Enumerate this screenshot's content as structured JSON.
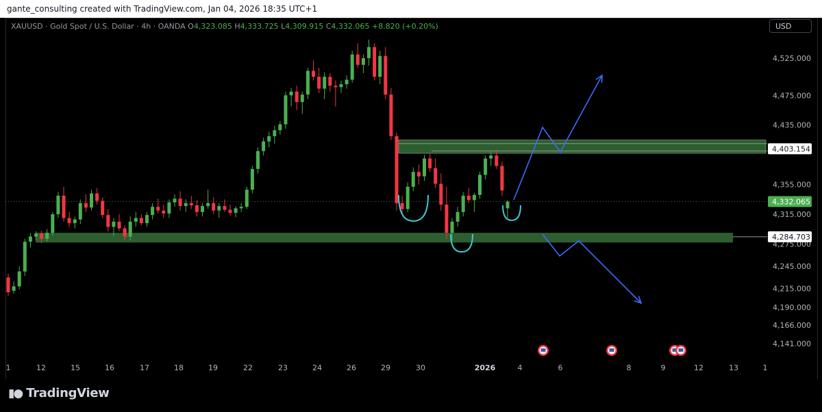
{
  "attribution": "gante_consulting created with TradingView.com, Jan 04, 2026 18:35 UTC+1",
  "legend": {
    "symbol": "XAUUSD · Gold Spot / U.S. Dollar · 4h · OANDA",
    "o_label": "O",
    "o_value": "4,323.085",
    "h_label": "H",
    "h_value": "4,333.725",
    "l_label": "L",
    "l_value": "4,309.915",
    "c_label": "C",
    "c_value": "4,332.065",
    "change": "+8.820 (+0.20%)"
  },
  "currency_button": "USD",
  "brand": "TradingView",
  "colors": {
    "up": "#4caf50",
    "down": "#f23645",
    "zone": "#2e5e30",
    "arrow": "#3d6bff",
    "cup": "#3fc8d8",
    "price_tag": "#4caf50"
  },
  "chart_data": {
    "type": "candlestick",
    "instrument": "XAUUSD",
    "timeframe": "4h",
    "y_ticks": [
      "4,525.000",
      "4,475.000",
      "4,435.000",
      "4,355.000",
      "4,315.000",
      "4,275.000",
      "4,245.000",
      "4,215.000",
      "4,190.000",
      "4,166.000",
      "4,141.000"
    ],
    "y_tick_values": [
      4525,
      4475,
      4435,
      4355,
      4315,
      4275,
      4245,
      4215,
      4190,
      4166,
      4141
    ],
    "x_ticks": [
      "1",
      "12",
      "15",
      "16",
      "17",
      "18",
      "19",
      "22",
      "23",
      "24",
      "26",
      "29",
      "30",
      "2026",
      "4",
      "6",
      "8",
      "9",
      "12",
      "13",
      "1"
    ],
    "price_labels": [
      {
        "text": "4,403.154",
        "value": 4403.154,
        "style": "white"
      },
      {
        "text": "4,332.065",
        "value": 4332.065,
        "style": "green"
      },
      {
        "text": "4,284.703",
        "value": 4284.703,
        "style": "white"
      }
    ],
    "resistance_zone": [
      4397,
      4415
    ],
    "support_zone": [
      4277,
      4290
    ],
    "candles": [
      [
        4230,
        4235,
        4205,
        4210
      ],
      [
        4212,
        4225,
        4208,
        4218
      ],
      [
        4218,
        4245,
        4214,
        4238
      ],
      [
        4238,
        4282,
        4232,
        4278
      ],
      [
        4278,
        4290,
        4270,
        4285
      ],
      [
        4285,
        4292,
        4280,
        4289
      ],
      [
        4289,
        4293,
        4276,
        4282
      ],
      [
        4282,
        4295,
        4278,
        4290
      ],
      [
        4290,
        4318,
        4286,
        4315
      ],
      [
        4315,
        4345,
        4310,
        4340
      ],
      [
        4340,
        4352,
        4305,
        4310
      ],
      [
        4310,
        4318,
        4298,
        4303
      ],
      [
        4303,
        4312,
        4296,
        4308
      ],
      [
        4308,
        4335,
        4302,
        4330
      ],
      [
        4330,
        4342,
        4318,
        4324
      ],
      [
        4324,
        4348,
        4320,
        4343
      ],
      [
        4343,
        4350,
        4328,
        4333
      ],
      [
        4333,
        4338,
        4310,
        4314
      ],
      [
        4314,
        4322,
        4292,
        4298
      ],
      [
        4298,
        4310,
        4286,
        4305
      ],
      [
        4305,
        4315,
        4292,
        4296
      ],
      [
        4296,
        4300,
        4280,
        4285
      ],
      [
        4285,
        4312,
        4280,
        4305
      ],
      [
        4305,
        4318,
        4298,
        4310
      ],
      [
        4310,
        4315,
        4300,
        4303
      ],
      [
        4303,
        4318,
        4298,
        4314
      ],
      [
        4314,
        4330,
        4308,
        4325
      ],
      [
        4325,
        4336,
        4316,
        4320
      ],
      [
        4320,
        4328,
        4310,
        4316
      ],
      [
        4316,
        4335,
        4310,
        4331
      ],
      [
        4331,
        4342,
        4325,
        4336
      ],
      [
        4336,
        4346,
        4320,
        4326
      ],
      [
        4326,
        4335,
        4318,
        4330
      ],
      [
        4330,
        4340,
        4322,
        4327
      ],
      [
        4327,
        4334,
        4312,
        4318
      ],
      [
        4318,
        4330,
        4312,
        4326
      ],
      [
        4326,
        4348,
        4322,
        4330
      ],
      [
        4330,
        4338,
        4315,
        4320
      ],
      [
        4320,
        4330,
        4310,
        4326
      ],
      [
        4326,
        4335,
        4318,
        4321
      ],
      [
        4321,
        4328,
        4313,
        4317
      ],
      [
        4317,
        4326,
        4311,
        4323
      ],
      [
        4323,
        4330,
        4318,
        4325
      ],
      [
        4325,
        4352,
        4322,
        4348
      ],
      [
        4348,
        4380,
        4343,
        4376
      ],
      [
        4376,
        4405,
        4370,
        4400
      ],
      [
        4400,
        4418,
        4394,
        4413
      ],
      [
        4413,
        4426,
        4405,
        4420
      ],
      [
        4420,
        4434,
        4410,
        4428
      ],
      [
        4428,
        4440,
        4422,
        4436
      ],
      [
        4436,
        4480,
        4430,
        4475
      ],
      [
        4475,
        4485,
        4460,
        4480
      ],
      [
        4480,
        4488,
        4455,
        4466
      ],
      [
        4466,
        4480,
        4450,
        4476
      ],
      [
        4476,
        4512,
        4470,
        4508
      ],
      [
        4508,
        4522,
        4495,
        4500
      ],
      [
        4500,
        4512,
        4478,
        4484
      ],
      [
        4484,
        4506,
        4470,
        4500
      ],
      [
        4500,
        4505,
        4480,
        4488
      ],
      [
        4488,
        4495,
        4460,
        4486
      ],
      [
        4486,
        4495,
        4478,
        4490
      ],
      [
        4490,
        4502,
        4484,
        4496
      ],
      [
        4496,
        4535,
        4492,
        4530
      ],
      [
        4530,
        4545,
        4512,
        4516
      ],
      [
        4516,
        4530,
        4505,
        4525
      ],
      [
        4525,
        4550,
        4515,
        4540
      ],
      [
        4540,
        4545,
        4495,
        4500
      ],
      [
        4500,
        4535,
        4490,
        4528
      ],
      [
        4528,
        4540,
        4470,
        4476
      ],
      [
        4476,
        4485,
        4415,
        4420
      ],
      [
        4420,
        4425,
        4320,
        4330
      ],
      [
        4330,
        4340,
        4315,
        4322
      ],
      [
        4322,
        4358,
        4318,
        4352
      ],
      [
        4352,
        4378,
        4346,
        4372
      ],
      [
        4372,
        4382,
        4355,
        4366
      ],
      [
        4366,
        4395,
        4360,
        4390
      ],
      [
        4390,
        4398,
        4372,
        4377
      ],
      [
        4377,
        4390,
        4350,
        4356
      ],
      [
        4356,
        4370,
        4320,
        4328
      ],
      [
        4328,
        4352,
        4282,
        4290
      ],
      [
        4290,
        4310,
        4280,
        4305
      ],
      [
        4305,
        4325,
        4298,
        4318
      ],
      [
        4318,
        4345,
        4312,
        4340
      ],
      [
        4340,
        4350,
        4330,
        4334
      ],
      [
        4334,
        4344,
        4318,
        4341
      ],
      [
        4341,
        4372,
        4336,
        4368
      ],
      [
        4368,
        4394,
        4362,
        4390
      ],
      [
        4390,
        4400,
        4380,
        4394
      ],
      [
        4394,
        4402,
        4376,
        4380
      ],
      [
        4380,
        4386,
        4340,
        4347
      ],
      [
        4323,
        4334,
        4310,
        4332
      ]
    ],
    "projections": {
      "bullish_path": [
        [
          4332,
          0
        ],
        [
          4425,
          0
        ],
        [
          4400,
          0
        ],
        [
          4490,
          0
        ]
      ],
      "bearish_path": [
        [
          4285,
          0
        ],
        [
          4250,
          0
        ],
        [
          4270,
          0
        ],
        [
          4195,
          0
        ]
      ]
    },
    "events": [
      "US",
      "US",
      "US",
      "US"
    ],
    "grid": false
  }
}
